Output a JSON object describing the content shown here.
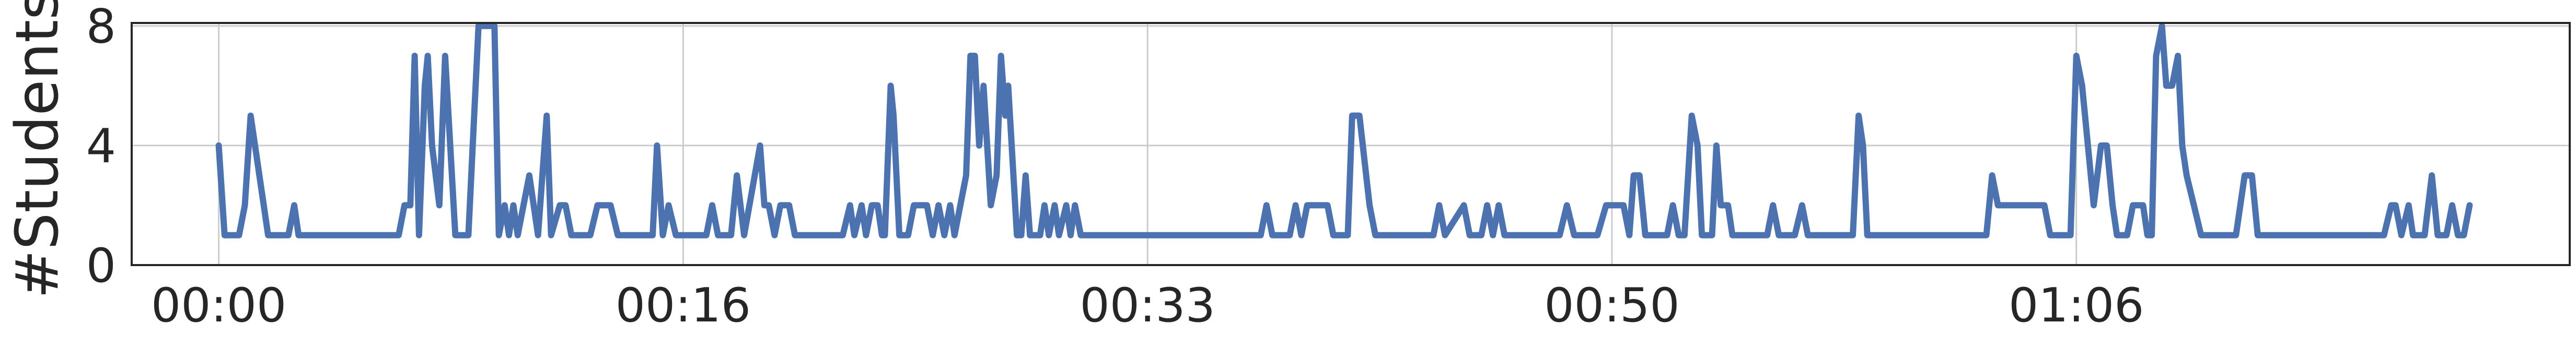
{
  "chart_data": {
    "type": "line",
    "xlabel": "",
    "ylabel": "#Students",
    "ylim": [
      0,
      8.1
    ],
    "yticks": [
      0,
      4,
      8
    ],
    "xlim": [
      -3.0,
      81.0
    ],
    "xticks": [
      0,
      16,
      32,
      48,
      64
    ],
    "xtick_labels": [
      "00:00",
      "00:16",
      "00:33",
      "00:50",
      "01:06"
    ],
    "grid": true,
    "legend": "none",
    "colors": {
      "line": "#4c72b0",
      "grid": "#cccccc",
      "frame": "#262626"
    },
    "series": [
      {
        "values": [
          [
            0.0,
            4
          ],
          [
            0.2,
            1
          ],
          [
            0.7,
            1
          ],
          [
            0.9,
            2
          ],
          [
            1.1,
            5
          ],
          [
            1.7,
            1
          ],
          [
            2.4,
            1
          ],
          [
            2.6,
            2
          ],
          [
            2.75,
            1
          ],
          [
            6.2,
            1
          ],
          [
            6.4,
            2
          ],
          [
            6.6,
            2
          ],
          [
            6.75,
            7
          ],
          [
            6.9,
            1
          ],
          [
            7.1,
            6
          ],
          [
            7.2,
            7
          ],
          [
            7.35,
            4
          ],
          [
            7.6,
            2
          ],
          [
            7.8,
            7
          ],
          [
            8.15,
            1
          ],
          [
            8.6,
            1
          ],
          [
            8.95,
            8
          ],
          [
            9.5,
            8
          ],
          [
            9.65,
            1
          ],
          [
            9.85,
            2
          ],
          [
            10.0,
            1
          ],
          [
            10.15,
            2
          ],
          [
            10.3,
            1
          ],
          [
            10.7,
            3
          ],
          [
            11.0,
            1
          ],
          [
            11.3,
            5
          ],
          [
            11.45,
            1
          ],
          [
            11.75,
            2
          ],
          [
            11.95,
            2
          ],
          [
            12.15,
            1
          ],
          [
            12.8,
            1
          ],
          [
            13.05,
            2
          ],
          [
            13.5,
            2
          ],
          [
            13.75,
            1
          ],
          [
            14.95,
            1
          ],
          [
            15.1,
            4
          ],
          [
            15.3,
            1
          ],
          [
            15.5,
            2
          ],
          [
            15.75,
            1
          ],
          [
            16.8,
            1
          ],
          [
            17.0,
            2
          ],
          [
            17.2,
            1
          ],
          [
            17.65,
            1
          ],
          [
            17.85,
            3
          ],
          [
            18.1,
            1
          ],
          [
            18.65,
            4
          ],
          [
            18.8,
            2
          ],
          [
            18.95,
            2
          ],
          [
            19.15,
            1
          ],
          [
            19.35,
            2
          ],
          [
            19.65,
            2
          ],
          [
            19.85,
            1
          ],
          [
            21.5,
            1
          ],
          [
            21.75,
            2
          ],
          [
            21.9,
            1
          ],
          [
            22.15,
            2
          ],
          [
            22.3,
            1
          ],
          [
            22.5,
            2
          ],
          [
            22.7,
            2
          ],
          [
            22.85,
            1
          ],
          [
            22.95,
            1
          ],
          [
            23.15,
            6
          ],
          [
            23.25,
            5
          ],
          [
            23.45,
            1
          ],
          [
            23.75,
            1
          ],
          [
            23.95,
            2
          ],
          [
            24.4,
            2
          ],
          [
            24.6,
            1
          ],
          [
            24.8,
            2
          ],
          [
            25.0,
            1
          ],
          [
            25.2,
            2
          ],
          [
            25.35,
            1
          ],
          [
            25.55,
            2
          ],
          [
            25.75,
            3
          ],
          [
            25.9,
            7
          ],
          [
            26.05,
            7
          ],
          [
            26.2,
            4
          ],
          [
            26.35,
            6
          ],
          [
            26.6,
            2
          ],
          [
            26.8,
            3
          ],
          [
            26.95,
            7
          ],
          [
            27.1,
            5
          ],
          [
            27.2,
            6
          ],
          [
            27.5,
            1
          ],
          [
            27.65,
            1
          ],
          [
            27.8,
            3
          ],
          [
            27.95,
            1
          ],
          [
            28.3,
            1
          ],
          [
            28.45,
            2
          ],
          [
            28.6,
            1
          ],
          [
            28.8,
            2
          ],
          [
            28.95,
            1
          ],
          [
            29.2,
            2
          ],
          [
            29.35,
            1
          ],
          [
            29.5,
            2
          ],
          [
            29.7,
            1
          ],
          [
            35.9,
            1
          ],
          [
            36.1,
            2
          ],
          [
            36.3,
            1
          ],
          [
            36.9,
            1
          ],
          [
            37.1,
            2
          ],
          [
            37.3,
            1
          ],
          [
            37.5,
            2
          ],
          [
            38.2,
            2
          ],
          [
            38.4,
            1
          ],
          [
            38.9,
            1
          ],
          [
            39.05,
            5
          ],
          [
            39.3,
            5
          ],
          [
            39.65,
            2
          ],
          [
            39.85,
            1
          ],
          [
            40.35,
            1
          ],
          [
            41.85,
            1
          ],
          [
            42.05,
            2
          ],
          [
            42.25,
            1
          ],
          [
            42.9,
            2
          ],
          [
            43.1,
            1
          ],
          [
            43.5,
            1
          ],
          [
            43.7,
            2
          ],
          [
            43.9,
            1
          ],
          [
            44.1,
            2
          ],
          [
            44.3,
            1
          ],
          [
            46.2,
            1
          ],
          [
            46.45,
            2
          ],
          [
            46.7,
            1
          ],
          [
            47.5,
            1
          ],
          [
            47.8,
            2
          ],
          [
            48.4,
            2
          ],
          [
            48.6,
            1
          ],
          [
            48.75,
            3
          ],
          [
            48.95,
            3
          ],
          [
            49.15,
            1
          ],
          [
            49.9,
            1
          ],
          [
            50.1,
            2
          ],
          [
            50.3,
            1
          ],
          [
            50.5,
            1
          ],
          [
            50.75,
            5
          ],
          [
            50.95,
            4
          ],
          [
            51.1,
            1
          ],
          [
            51.45,
            1
          ],
          [
            51.6,
            4
          ],
          [
            51.75,
            2
          ],
          [
            52.0,
            2
          ],
          [
            52.15,
            1
          ],
          [
            53.35,
            1
          ],
          [
            53.55,
            2
          ],
          [
            53.75,
            1
          ],
          [
            54.3,
            1
          ],
          [
            54.55,
            2
          ],
          [
            54.75,
            1
          ],
          [
            56.3,
            1
          ],
          [
            56.5,
            5
          ],
          [
            56.65,
            4
          ],
          [
            56.8,
            1
          ],
          [
            58.5,
            1
          ],
          [
            60.9,
            1
          ],
          [
            61.1,
            3
          ],
          [
            61.3,
            2
          ],
          [
            62.9,
            2
          ],
          [
            63.1,
            1
          ],
          [
            63.8,
            1
          ],
          [
            64.0,
            7
          ],
          [
            64.2,
            6
          ],
          [
            64.6,
            2
          ],
          [
            64.85,
            4
          ],
          [
            65.05,
            4
          ],
          [
            65.25,
            2
          ],
          [
            65.4,
            1
          ],
          [
            65.75,
            1
          ],
          [
            65.95,
            2
          ],
          [
            66.3,
            2
          ],
          [
            66.45,
            1
          ],
          [
            66.6,
            1
          ],
          [
            66.75,
            7
          ],
          [
            66.95,
            8
          ],
          [
            67.1,
            6
          ],
          [
            67.3,
            6
          ],
          [
            67.5,
            7
          ],
          [
            67.65,
            4
          ],
          [
            67.8,
            3
          ],
          [
            68.05,
            2
          ],
          [
            68.3,
            1
          ],
          [
            69.5,
            1
          ],
          [
            69.8,
            3
          ],
          [
            70.05,
            3
          ],
          [
            70.25,
            1
          ],
          [
            74.6,
            1
          ],
          [
            74.85,
            2
          ],
          [
            75.0,
            2
          ],
          [
            75.2,
            1
          ],
          [
            75.45,
            2
          ],
          [
            75.6,
            1
          ],
          [
            76.0,
            1
          ],
          [
            76.25,
            3
          ],
          [
            76.45,
            1
          ],
          [
            76.75,
            1
          ],
          [
            76.95,
            2
          ],
          [
            77.15,
            1
          ],
          [
            77.35,
            1
          ],
          [
            77.55,
            2
          ]
        ]
      }
    ]
  }
}
